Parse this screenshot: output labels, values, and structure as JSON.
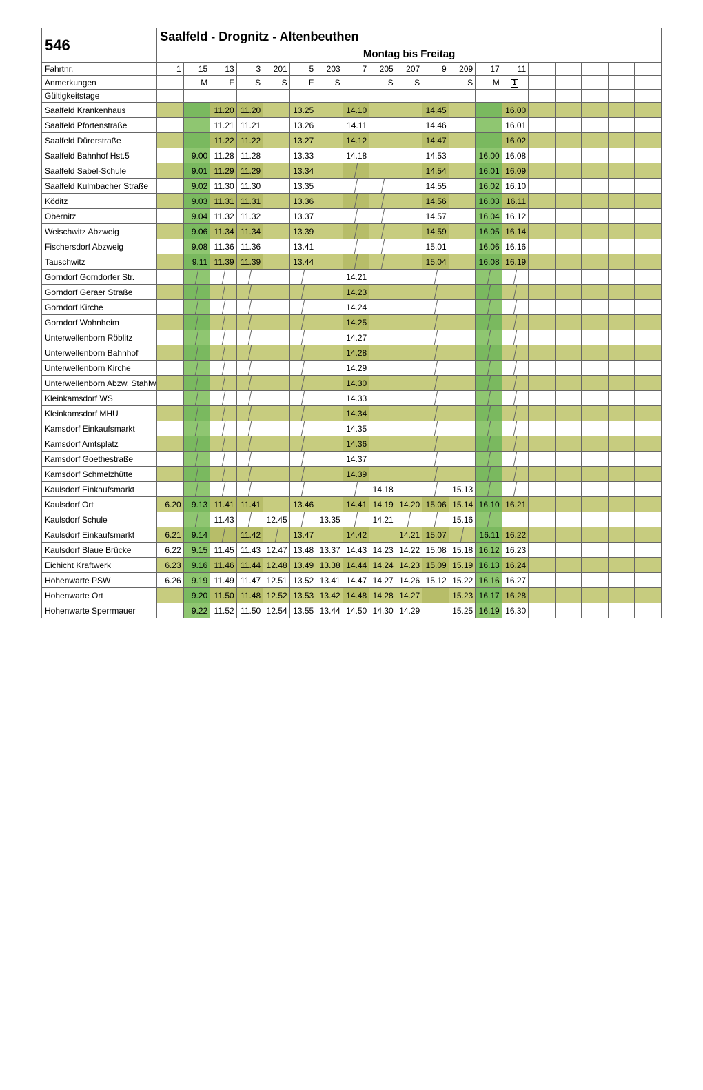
{
  "route_no": "546",
  "route_name": "Saalfeld - Drognitz - Altenbeuthen",
  "day_header": "Montag bis Freitag",
  "header_rows": {
    "fahrtnr": {
      "label": "Fahrtnr."
    },
    "anmerkungen": {
      "label": "Anmerkungen"
    },
    "gueltig": {
      "label": "Gültigkeitstage"
    }
  },
  "colors": {
    "olive": "#c7cc7f",
    "olive_dk": "#b7bd69",
    "green": "#8fc671",
    "green_dk": "#7ab95f",
    "border": "#666666",
    "text": "#000000"
  },
  "trips": [
    {
      "id": "1",
      "anm": ""
    },
    {
      "id": "15",
      "anm": "M"
    },
    {
      "id": "13",
      "anm": "F"
    },
    {
      "id": "3",
      "anm": "S"
    },
    {
      "id": "201",
      "anm": "S"
    },
    {
      "id": "5",
      "anm": "F"
    },
    {
      "id": "203",
      "anm": "S"
    },
    {
      "id": "7",
      "anm": ""
    },
    {
      "id": "205",
      "anm": "S"
    },
    {
      "id": "207",
      "anm": "S"
    },
    {
      "id": "9",
      "anm": ""
    },
    {
      "id": "209",
      "anm": "S"
    },
    {
      "id": "17",
      "anm": "M"
    },
    {
      "id": "11",
      "anm": "ICON"
    },
    {
      "id": "",
      "anm": ""
    },
    {
      "id": "",
      "anm": ""
    },
    {
      "id": "",
      "anm": ""
    },
    {
      "id": "",
      "anm": ""
    },
    {
      "id": "",
      "anm": ""
    }
  ],
  "stops": [
    {
      "name": "Saalfeld Krankenhaus",
      "olive": true,
      "sh": "A",
      "t": [
        "",
        "",
        "11.20",
        "11.20",
        "",
        "13.25",
        "",
        "14.10",
        "",
        "",
        "14.45",
        "",
        "",
        "16.00",
        "",
        "",
        "",
        "",
        ""
      ]
    },
    {
      "name": "Saalfeld Pfortenstraße",
      "olive": false,
      "sh": "",
      "t": [
        "",
        "",
        "11.21",
        "11.21",
        "",
        "13.26",
        "",
        "14.11",
        "",
        "",
        "14.46",
        "",
        "",
        "16.01",
        "",
        "",
        "",
        "",
        ""
      ]
    },
    {
      "name": "Saalfeld Dürerstraße",
      "olive": true,
      "sh": "A",
      "t": [
        "",
        "",
        "11.22",
        "11.22",
        "",
        "13.27",
        "",
        "14.12",
        "",
        "",
        "14.47",
        "",
        "",
        "16.02",
        "",
        "",
        "",
        "",
        ""
      ]
    },
    {
      "name": "Saalfeld Bahnhof Hst.5",
      "olive": false,
      "sh": "",
      "t": [
        "",
        "9.00",
        "11.28",
        "11.28",
        "",
        "13.33",
        "",
        "14.18",
        "",
        "",
        "14.53",
        "",
        "16.00",
        "16.08",
        "",
        "",
        "",
        "",
        ""
      ]
    },
    {
      "name": "Saalfeld Sabel-Schule",
      "olive": true,
      "sh": "A",
      "t": [
        "",
        "9.01",
        "11.29",
        "11.29",
        "",
        "13.34",
        "",
        "|",
        "",
        "",
        "14.54",
        "",
        "16.01",
        "16.09",
        "",
        "",
        "",
        "",
        ""
      ]
    },
    {
      "name": "Saalfeld Kulmbacher Straße",
      "olive": false,
      "sh": "",
      "t": [
        "",
        "9.02",
        "11.30",
        "11.30",
        "",
        "13.35",
        "",
        "|",
        "|",
        "",
        "14.55",
        "",
        "16.02",
        "16.10",
        "",
        "",
        "",
        "",
        ""
      ]
    },
    {
      "name": "Köditz",
      "olive": true,
      "sh": "A",
      "t": [
        "",
        "9.03",
        "11.31",
        "11.31",
        "",
        "13.36",
        "",
        "|",
        "|",
        "",
        "14.56",
        "",
        "16.03",
        "16.11",
        "",
        "",
        "",
        "",
        ""
      ]
    },
    {
      "name": "Obernitz",
      "olive": false,
      "sh": "",
      "t": [
        "",
        "9.04",
        "11.32",
        "11.32",
        "",
        "13.37",
        "",
        "|",
        "|",
        "",
        "14.57",
        "",
        "16.04",
        "16.12",
        "",
        "",
        "",
        "",
        ""
      ]
    },
    {
      "name": "Weischwitz Abzweig",
      "olive": true,
      "sh": "A",
      "t": [
        "",
        "9.06",
        "11.34",
        "11.34",
        "",
        "13.39",
        "",
        "|",
        "|",
        "",
        "14.59",
        "",
        "16.05",
        "16.14",
        "",
        "",
        "",
        "",
        ""
      ]
    },
    {
      "name": "Fischersdorf Abzweig",
      "olive": false,
      "sh": "",
      "t": [
        "",
        "9.08",
        "11.36",
        "11.36",
        "",
        "13.41",
        "",
        "|",
        "|",
        "",
        "15.01",
        "",
        "16.06",
        "16.16",
        "",
        "",
        "",
        "",
        ""
      ]
    },
    {
      "name": "Tauschwitz",
      "olive": true,
      "sh": "A",
      "t": [
        "",
        "9.11",
        "11.39",
        "11.39",
        "",
        "13.44",
        "",
        "|",
        "|",
        "",
        "15.04",
        "",
        "16.08",
        "16.19",
        "",
        "",
        "",
        "",
        ""
      ]
    },
    {
      "name": "Gorndorf Gorndorfer Str.",
      "olive": false,
      "sh": "",
      "t": [
        "",
        "|",
        "|",
        "|",
        "",
        "|",
        "",
        "14.21",
        "",
        "",
        "|",
        "",
        "|",
        "|",
        "",
        "",
        "",
        "",
        ""
      ]
    },
    {
      "name": "Gorndorf Geraer Straße",
      "olive": true,
      "sh": "B",
      "t": [
        "",
        "|",
        "|",
        "|",
        "",
        "|",
        "",
        "14.23",
        "",
        "",
        "|",
        "",
        "|",
        "|",
        "",
        "",
        "",
        "",
        ""
      ]
    },
    {
      "name": "Gorndorf Kirche",
      "olive": false,
      "sh": "",
      "t": [
        "",
        "|",
        "|",
        "|",
        "",
        "|",
        "",
        "14.24",
        "",
        "",
        "|",
        "",
        "|",
        "|",
        "",
        "",
        "",
        "",
        ""
      ]
    },
    {
      "name": "Gorndorf Wohnheim",
      "olive": true,
      "sh": "B",
      "t": [
        "",
        "|",
        "|",
        "|",
        "",
        "|",
        "",
        "14.25",
        "",
        "",
        "|",
        "",
        "|",
        "|",
        "",
        "",
        "",
        "",
        ""
      ]
    },
    {
      "name": "Unterwellenborn Röblitz",
      "olive": false,
      "sh": "",
      "t": [
        "",
        "|",
        "|",
        "|",
        "",
        "|",
        "",
        "14.27",
        "",
        "",
        "|",
        "",
        "|",
        "|",
        "",
        "",
        "",
        "",
        ""
      ]
    },
    {
      "name": "Unterwellenborn Bahnhof",
      "olive": true,
      "sh": "B",
      "t": [
        "",
        "|",
        "|",
        "|",
        "",
        "|",
        "",
        "14.28",
        "",
        "",
        "|",
        "",
        "|",
        "|",
        "",
        "",
        "",
        "",
        ""
      ]
    },
    {
      "name": "Unterwellenborn Kirche",
      "olive": false,
      "sh": "",
      "t": [
        "",
        "|",
        "|",
        "|",
        "",
        "|",
        "",
        "14.29",
        "",
        "",
        "|",
        "",
        "|",
        "|",
        "",
        "",
        "",
        "",
        ""
      ]
    },
    {
      "name": "Unterwellenborn Abzw. Stahlwerk",
      "olive": true,
      "sh": "B",
      "t": [
        "",
        "|",
        "|",
        "|",
        "",
        "|",
        "",
        "14.30",
        "",
        "",
        "|",
        "",
        "|",
        "|",
        "",
        "",
        "",
        "",
        ""
      ]
    },
    {
      "name": "Kleinkamsdorf WS",
      "olive": false,
      "sh": "",
      "t": [
        "",
        "|",
        "|",
        "|",
        "",
        "|",
        "",
        "14.33",
        "",
        "",
        "|",
        "",
        "|",
        "|",
        "",
        "",
        "",
        "",
        ""
      ]
    },
    {
      "name": "Kleinkamsdorf MHU",
      "olive": true,
      "sh": "B",
      "t": [
        "",
        "|",
        "|",
        "|",
        "",
        "|",
        "",
        "14.34",
        "",
        "",
        "|",
        "",
        "|",
        "|",
        "",
        "",
        "",
        "",
        ""
      ]
    },
    {
      "name": "Kamsdorf Einkaufsmarkt",
      "olive": false,
      "sh": "",
      "t": [
        "",
        "|",
        "|",
        "|",
        "",
        "|",
        "",
        "14.35",
        "",
        "",
        "|",
        "",
        "|",
        "|",
        "",
        "",
        "",
        "",
        ""
      ]
    },
    {
      "name": "Kamsdorf Amtsplatz",
      "olive": true,
      "sh": "B",
      "t": [
        "",
        "|",
        "|",
        "|",
        "",
        "|",
        "",
        "14.36",
        "",
        "",
        "|",
        "",
        "|",
        "|",
        "",
        "",
        "",
        "",
        ""
      ]
    },
    {
      "name": "Kamsdorf Goethestraße",
      "olive": false,
      "sh": "",
      "t": [
        "",
        "|",
        "|",
        "|",
        "",
        "|",
        "",
        "14.37",
        "",
        "",
        "|",
        "",
        "|",
        "|",
        "",
        "",
        "",
        "",
        ""
      ]
    },
    {
      "name": "Kamsdorf Schmelzhütte",
      "olive": true,
      "sh": "B",
      "t": [
        "",
        "|",
        "|",
        "|",
        "",
        "|",
        "",
        "14.39",
        "",
        "",
        "|",
        "",
        "|",
        "|",
        "",
        "",
        "",
        "",
        ""
      ]
    },
    {
      "name": "Kaulsdorf Einkaufsmarkt",
      "olive": false,
      "sh": "",
      "t": [
        "",
        "|",
        "|",
        "|",
        "",
        "|",
        "",
        "|",
        "14.18",
        "",
        "|",
        "15.13",
        "|",
        "|",
        "",
        "",
        "",
        "",
        ""
      ]
    },
    {
      "name": "Kaulsdorf Ort",
      "olive": true,
      "sh": "A",
      "t": [
        "6.20",
        "9.13",
        "11.41",
        "11.41",
        "",
        "13.46",
        "",
        "14.41",
        "14.19",
        "14.20",
        "15.06",
        "15.14",
        "16.10",
        "16.21",
        "",
        "",
        "",
        "",
        ""
      ]
    },
    {
      "name": "Kaulsdorf Schule",
      "olive": false,
      "sh": "",
      "t": [
        "",
        "|",
        "11.43",
        "|",
        "12.45",
        "|",
        "13.35",
        "|",
        "14.21",
        "|",
        "|",
        "15.16",
        "|",
        "",
        "",
        "",
        "",
        "",
        ""
      ]
    },
    {
      "name": "Kaulsdorf Einkaufsmarkt",
      "olive": true,
      "sh": "A",
      "t": [
        "6.21",
        "9.14",
        "|",
        "11.42",
        "|",
        "13.47",
        "",
        "14.42",
        "",
        "14.21",
        "15.07",
        "|",
        "16.11",
        "16.22",
        "",
        "",
        "",
        "",
        ""
      ]
    },
    {
      "name": "Kaulsdorf Blaue Brücke",
      "olive": false,
      "sh": "",
      "t": [
        "6.22",
        "9.15",
        "11.45",
        "11.43",
        "12.47",
        "13.48",
        "13.37",
        "14.43",
        "14.23",
        "14.22",
        "15.08",
        "15.18",
        "16.12",
        "16.23",
        "",
        "",
        "",
        "",
        ""
      ]
    },
    {
      "name": "Eichicht Kraftwerk",
      "olive": true,
      "sh": "A",
      "t": [
        "6.23",
        "9.16",
        "11.46",
        "11.44",
        "12.48",
        "13.49",
        "13.38",
        "14.44",
        "14.24",
        "14.23",
        "15.09",
        "15.19",
        "16.13",
        "16.24",
        "",
        "",
        "",
        "",
        ""
      ]
    },
    {
      "name": "Hohenwarte PSW",
      "olive": false,
      "sh": "",
      "t": [
        "6.26",
        "9.19",
        "11.49",
        "11.47",
        "12.51",
        "13.52",
        "13.41",
        "14.47",
        "14.27",
        "14.26",
        "15.12",
        "15.22",
        "16.16",
        "16.27",
        "",
        "",
        "",
        "",
        ""
      ]
    },
    {
      "name": "Hohenwarte Ort",
      "olive": true,
      "sh": "A",
      "t": [
        "",
        "9.20",
        "11.50",
        "11.48",
        "12.52",
        "13.53",
        "13.42",
        "14.48",
        "14.28",
        "14.27",
        "",
        "15.23",
        "16.17",
        "16.28",
        "",
        "",
        "",
        "",
        ""
      ]
    },
    {
      "name": "Hohenwarte Sperrmauer",
      "olive": false,
      "sh": "",
      "t": [
        "",
        "9.22",
        "11.52",
        "11.50",
        "12.54",
        "13.55",
        "13.44",
        "14.50",
        "14.30",
        "14.29",
        "",
        "15.25",
        "16.19",
        "16.30",
        "",
        "",
        "",
        "",
        ""
      ]
    }
  ],
  "shadeCols": {
    "A": [
      2,
      3,
      7,
      10,
      13
    ],
    "B": [
      7
    ]
  },
  "greenCol": 1,
  "greenCol2": 12
}
